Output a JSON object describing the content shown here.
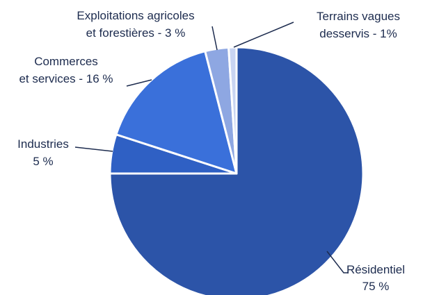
{
  "chart_data": {
    "type": "pie",
    "labels": [
      [
        "Résidentiel",
        "75 %"
      ],
      [
        "Industries",
        "5 %"
      ],
      [
        "Commerces",
        "et services - 16 %"
      ],
      [
        "Exploitations agricoles",
        "et forestières - 3 %"
      ],
      [
        "Terrains vagues",
        "desservis - 1%"
      ]
    ],
    "values": [
      75,
      5,
      16,
      3,
      1
    ],
    "colors": [
      "#2c54a8",
      "#2f60c4",
      "#3a70da",
      "#8ea7e2",
      "#c9d5f2"
    ]
  }
}
